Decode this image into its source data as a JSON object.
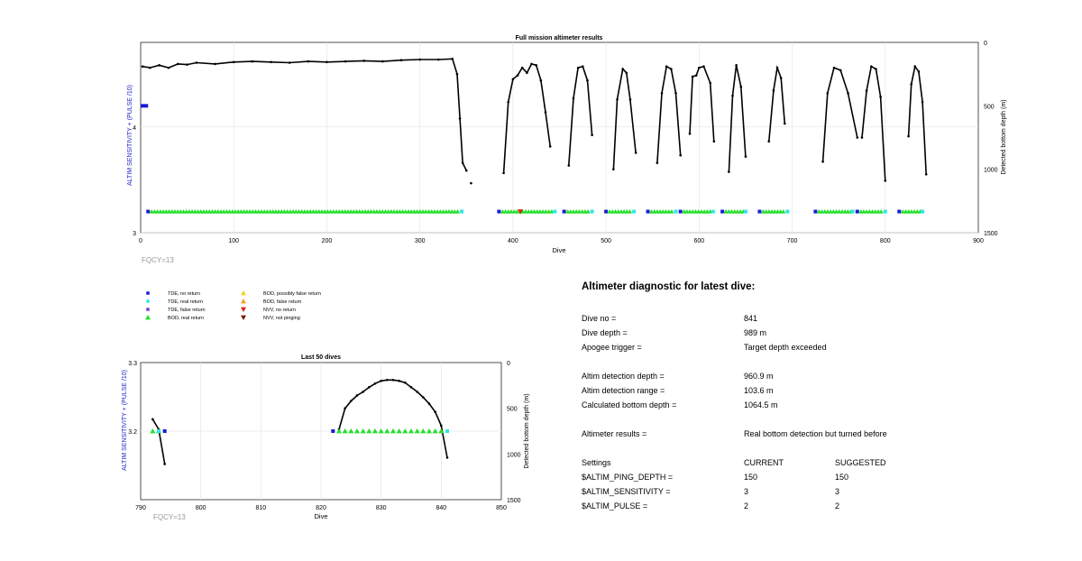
{
  "colors": {
    "tde_no_return": "#1a1ad6",
    "tde_real_return": "#2ee6e6",
    "tde_false_return": "#7a3fd6",
    "bod_real_return": "#22e02a",
    "bod_possibly_false": "#f2d024",
    "bod_false_return": "#f0a020",
    "nvv_no_return": "#e02010",
    "nvv_not_pinging": "#7a1a0a",
    "depth_line": "#000000",
    "axis_left_label": "#2020c8"
  },
  "top_chart": {
    "title": "Full mission altimeter results",
    "xlabel": "Dive",
    "ylabel_left": "ALTIM SENSITIVITY + (PULSE /10)",
    "ylabel_right": "Detected bottom depth (m)",
    "note": "FQCY=13",
    "x_ticks": [
      "0",
      "100",
      "200",
      "300",
      "400",
      "500",
      "600",
      "700",
      "800",
      "900"
    ],
    "y_left_ticks": [
      "3",
      "4"
    ],
    "y_right_ticks": [
      "0",
      "500",
      "1000",
      "1500"
    ]
  },
  "bottom_chart": {
    "title": "Last 50 dives",
    "xlabel": "Dive",
    "ylabel_left": "ALTIM SENSITIVITY + (PULSE /10)",
    "ylabel_right": "Detected bottom depth (m)",
    "note": "FQCY=13",
    "x_ticks": [
      "790",
      "800",
      "810",
      "820",
      "830",
      "840",
      "850"
    ],
    "y_left_ticks": [
      "3.3",
      "3.2"
    ],
    "y_right_ticks": [
      "0",
      "500",
      "1000",
      "1500"
    ]
  },
  "legend": [
    {
      "label": "TDE, no return",
      "marker": "square",
      "color_key": "tde_no_return"
    },
    {
      "label": "TDE, real return",
      "marker": "square",
      "color_key": "tde_real_return"
    },
    {
      "label": "TDE, false return",
      "marker": "square",
      "color_key": "tde_false_return"
    },
    {
      "label": "BOD, real return",
      "marker": "triangle-up",
      "color_key": "bod_real_return"
    },
    {
      "label": "BOD, possibly false return",
      "marker": "triangle-up",
      "color_key": "bod_possibly_false"
    },
    {
      "label": "BOD, false return",
      "marker": "triangle-up",
      "color_key": "bod_false_return"
    },
    {
      "label": "NVV, no return",
      "marker": "triangle-down",
      "color_key": "nvv_no_return"
    },
    {
      "label": "NVV, not pinging",
      "marker": "triangle-down",
      "color_key": "nvv_not_pinging"
    }
  ],
  "diagnostic": {
    "title": "Altimeter diagnostic for latest dive:",
    "dive_no_label": "Dive no =",
    "dive_no": "841",
    "dive_depth_label": "Dive depth =",
    "dive_depth": "989 m",
    "apogee_label": "Apogee trigger =",
    "apogee": "Target depth exceeded",
    "det_depth_label": "Altim detection depth =",
    "det_depth": "960.9 m",
    "det_range_label": "Altim detection range =",
    "det_range": "103.6 m",
    "calc_depth_label": "Calculated bottom depth =",
    "calc_depth": "1064.5 m",
    "results_label": "Altimeter results =",
    "results": "Real bottom detection but turned before",
    "settings_label": "Settings",
    "current_label": "CURRENT",
    "suggested_label": "SUGGESTED",
    "settings": [
      {
        "name": "$ALTIM_PING_DEPTH =",
        "current": "150",
        "suggested": "150"
      },
      {
        "name": "$ALTIM_SENSITIVITY =",
        "current": "3",
        "suggested": "3"
      },
      {
        "name": "$ALTIM_PULSE =",
        "current": "2",
        "suggested": "2"
      }
    ]
  },
  "chart_data": [
    {
      "type": "scatter",
      "title": "Full mission altimeter results",
      "xlabel": "Dive",
      "ylabel": "ALTIM SENSITIVITY + (PULSE /10)",
      "y2label": "Detected bottom depth (m)",
      "xlim": [
        0,
        900
      ],
      "ylim": [
        3,
        4.8
      ],
      "y2lim": [
        1500,
        0
      ],
      "grid": true,
      "sensitivity_level": 3.2,
      "tde_no_return_at": [
        0,
        4.2
      ],
      "tde_no_return_x_range": [
        0,
        8
      ],
      "bod_segments": [
        [
          8,
          345
        ],
        [
          385,
          445
        ],
        [
          455,
          485
        ],
        [
          500,
          530
        ],
        [
          545,
          575
        ],
        [
          580,
          615
        ],
        [
          625,
          650
        ],
        [
          665,
          695
        ],
        [
          725,
          765
        ],
        [
          770,
          800
        ],
        [
          815,
          840
        ]
      ],
      "nvv_no_return": [
        {
          "x": 408,
          "y": 3.2
        }
      ],
      "depth_segments": [
        {
          "x": [
            2,
            10,
            20,
            30,
            40,
            50,
            60,
            80,
            100,
            120,
            140,
            160,
            180,
            200,
            220,
            240,
            260,
            280,
            300,
            320,
            335,
            340,
            343,
            346,
            350
          ],
          "y": [
            190,
            200,
            180,
            200,
            170,
            175,
            160,
            170,
            155,
            150,
            155,
            160,
            150,
            155,
            150,
            145,
            150,
            140,
            135,
            135,
            130,
            250,
            600,
            950,
            1010
          ]
        },
        {
          "x": [
            355
          ],
          "y": [
            1110
          ]
        },
        {
          "x": [
            390,
            395,
            400,
            405,
            410,
            415,
            420,
            425,
            430,
            435,
            440
          ],
          "y": [
            1030,
            470,
            290,
            260,
            200,
            240,
            170,
            180,
            300,
            550,
            820
          ]
        },
        {
          "x": [
            460,
            465,
            470,
            475,
            480,
            485
          ],
          "y": [
            970,
            440,
            200,
            190,
            300,
            730
          ]
        },
        {
          "x": [
            508,
            512,
            518,
            522,
            526,
            532
          ],
          "y": [
            1000,
            450,
            210,
            240,
            450,
            870
          ]
        },
        {
          "x": [
            555,
            560,
            565,
            570,
            575,
            580
          ],
          "y": [
            950,
            400,
            190,
            210,
            400,
            890
          ]
        },
        {
          "x": [
            590,
            593,
            597,
            600,
            605,
            612,
            616
          ],
          "y": [
            720,
            270,
            260,
            200,
            190,
            320,
            780
          ]
        },
        {
          "x": [
            632,
            636,
            640,
            645,
            650
          ],
          "y": [
            1020,
            420,
            180,
            350,
            900
          ]
        },
        {
          "x": [
            675,
            680,
            684,
            688,
            692
          ],
          "y": [
            780,
            380,
            200,
            280,
            640
          ]
        },
        {
          "x": [
            733,
            738,
            745,
            752,
            760,
            770
          ],
          "y": [
            940,
            400,
            200,
            220,
            400,
            750
          ]
        },
        {
          "x": [
            775,
            780,
            785,
            790,
            795,
            800
          ],
          "y": [
            750,
            380,
            190,
            210,
            430,
            1090
          ]
        },
        {
          "x": [
            825,
            828,
            832,
            836,
            840,
            844
          ],
          "y": [
            740,
            330,
            190,
            230,
            470,
            1040
          ]
        }
      ]
    },
    {
      "type": "scatter",
      "title": "Last 50 dives",
      "xlabel": "Dive",
      "ylabel": "ALTIM SENSITIVITY + (PULSE /10)",
      "y2label": "Detected bottom depth (m)",
      "xlim": [
        790,
        850
      ],
      "ylim": [
        3.1,
        3.3
      ],
      "y2lim": [
        1500,
        0
      ],
      "grid": true,
      "tde_no_return": [
        {
          "x": 794,
          "y": 3.2
        },
        {
          "x": 822,
          "y": 3.2
        }
      ],
      "tde_real_return": [
        {
          "x": 793,
          "y": 3.2
        },
        {
          "x": 841,
          "y": 3.2
        }
      ],
      "bod_real_return": [
        792,
        793,
        823,
        824,
        825,
        826,
        827,
        828,
        829,
        830,
        831,
        832,
        833,
        834,
        835,
        836,
        837,
        838,
        839,
        840
      ],
      "depth_segments": [
        {
          "x": [
            792,
            793,
            794
          ],
          "y": [
            620,
            730,
            1110
          ]
        },
        {
          "x": [
            823,
            824,
            825,
            826,
            827,
            828,
            829,
            830,
            831,
            832,
            833,
            834,
            835,
            836,
            837,
            838,
            839,
            840,
            841
          ],
          "y": [
            730,
            500,
            420,
            360,
            320,
            270,
            230,
            200,
            190,
            190,
            200,
            220,
            270,
            320,
            380,
            450,
            540,
            690,
            1040
          ]
        }
      ]
    }
  ]
}
